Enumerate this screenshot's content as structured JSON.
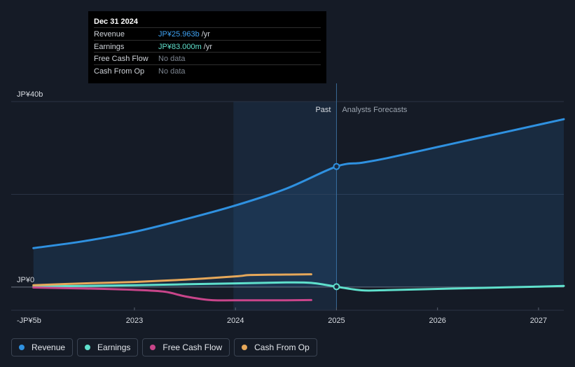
{
  "colors": {
    "revenue": "#2f91e0",
    "earnings": "#5fe0cc",
    "fcf": "#c8458a",
    "cfo": "#e6a85a"
  },
  "tooltip": {
    "date": "Dec 31 2024",
    "rows": [
      {
        "label": "Revenue",
        "value": "JP¥25.963b",
        "unit": "/yr",
        "color": "#3ea0f0"
      },
      {
        "label": "Earnings",
        "value": "JP¥83.000m",
        "unit": "/yr",
        "color": "#5fe0cc"
      },
      {
        "label": "Free Cash Flow",
        "value": "No data",
        "unit": "",
        "color": "#7d8590"
      },
      {
        "label": "Cash From Op",
        "value": "No data",
        "unit": "",
        "color": "#7d8590"
      }
    ]
  },
  "legend": [
    {
      "label": "Revenue",
      "color": "#2f91e0"
    },
    {
      "label": "Earnings",
      "color": "#5fe0cc"
    },
    {
      "label": "Free Cash Flow",
      "color": "#c8458a"
    },
    {
      "label": "Cash From Op",
      "color": "#e6a85a"
    }
  ],
  "chart_data": {
    "type": "line",
    "title": "",
    "units": "JP¥ billions",
    "ylim": [
      -5,
      40
    ],
    "y_ticks": [
      {
        "value": 40,
        "label": "JP¥40b"
      },
      {
        "value": 0,
        "label": "JP¥0"
      },
      {
        "value": -5,
        "label": "-JP¥5b"
      }
    ],
    "x_ticks": [
      {
        "value": 2023,
        "label": "2023"
      },
      {
        "value": 2024,
        "label": "2024"
      },
      {
        "value": 2025,
        "label": "2025"
      },
      {
        "value": 2026,
        "label": "2026"
      },
      {
        "value": 2027,
        "label": "2027"
      }
    ],
    "xlim": [
      2021.78,
      2027.25
    ],
    "past_label": "Past",
    "forecast_label": "Analysts Forecasts",
    "divider_x": 2025.0,
    "highlight_start_x": 2023.98,
    "series": [
      {
        "name": "Revenue",
        "key": "revenue",
        "area": true,
        "points": [
          [
            2022.0,
            8.4
          ],
          [
            2022.5,
            9.9
          ],
          [
            2023.0,
            11.9
          ],
          [
            2023.5,
            14.6
          ],
          [
            2024.0,
            17.6
          ],
          [
            2024.5,
            21.2
          ],
          [
            2025.0,
            26.0
          ],
          [
            2025.25,
            26.8
          ],
          [
            2025.5,
            27.8
          ],
          [
            2026.0,
            30.2
          ],
          [
            2026.5,
            32.6
          ],
          [
            2027.0,
            35.0
          ],
          [
            2027.25,
            36.2
          ]
        ]
      },
      {
        "name": "Earnings",
        "key": "earnings",
        "area": false,
        "points": [
          [
            2022.0,
            0.15
          ],
          [
            2022.5,
            0.25
          ],
          [
            2023.0,
            0.4
          ],
          [
            2023.5,
            0.6
          ],
          [
            2024.0,
            0.8
          ],
          [
            2024.5,
            1.0
          ],
          [
            2024.75,
            0.9
          ],
          [
            2025.0,
            0.08
          ],
          [
            2025.25,
            -0.7
          ],
          [
            2025.5,
            -0.65
          ],
          [
            2026.0,
            -0.4
          ],
          [
            2026.5,
            -0.15
          ],
          [
            2027.0,
            0.1
          ],
          [
            2027.25,
            0.25
          ]
        ]
      },
      {
        "name": "Free Cash Flow",
        "key": "fcf",
        "area": false,
        "points": [
          [
            2022.0,
            -0.1
          ],
          [
            2022.5,
            -0.3
          ],
          [
            2023.0,
            -0.6
          ],
          [
            2023.3,
            -1.0
          ],
          [
            2023.5,
            -2.0
          ],
          [
            2023.75,
            -2.8
          ],
          [
            2024.0,
            -2.85
          ],
          [
            2024.5,
            -2.85
          ],
          [
            2024.75,
            -2.8
          ]
        ]
      },
      {
        "name": "Cash From Op",
        "key": "cfo",
        "area": false,
        "points": [
          [
            2022.0,
            0.4
          ],
          [
            2022.5,
            0.8
          ],
          [
            2023.0,
            1.1
          ],
          [
            2023.5,
            1.6
          ],
          [
            2024.0,
            2.3
          ],
          [
            2024.15,
            2.6
          ],
          [
            2024.5,
            2.7
          ],
          [
            2024.75,
            2.75
          ]
        ]
      }
    ],
    "markers": [
      {
        "series": "revenue",
        "x": 2025.0,
        "y": 26.0
      },
      {
        "series": "earnings",
        "x": 2025.0,
        "y": 0.08
      }
    ]
  }
}
